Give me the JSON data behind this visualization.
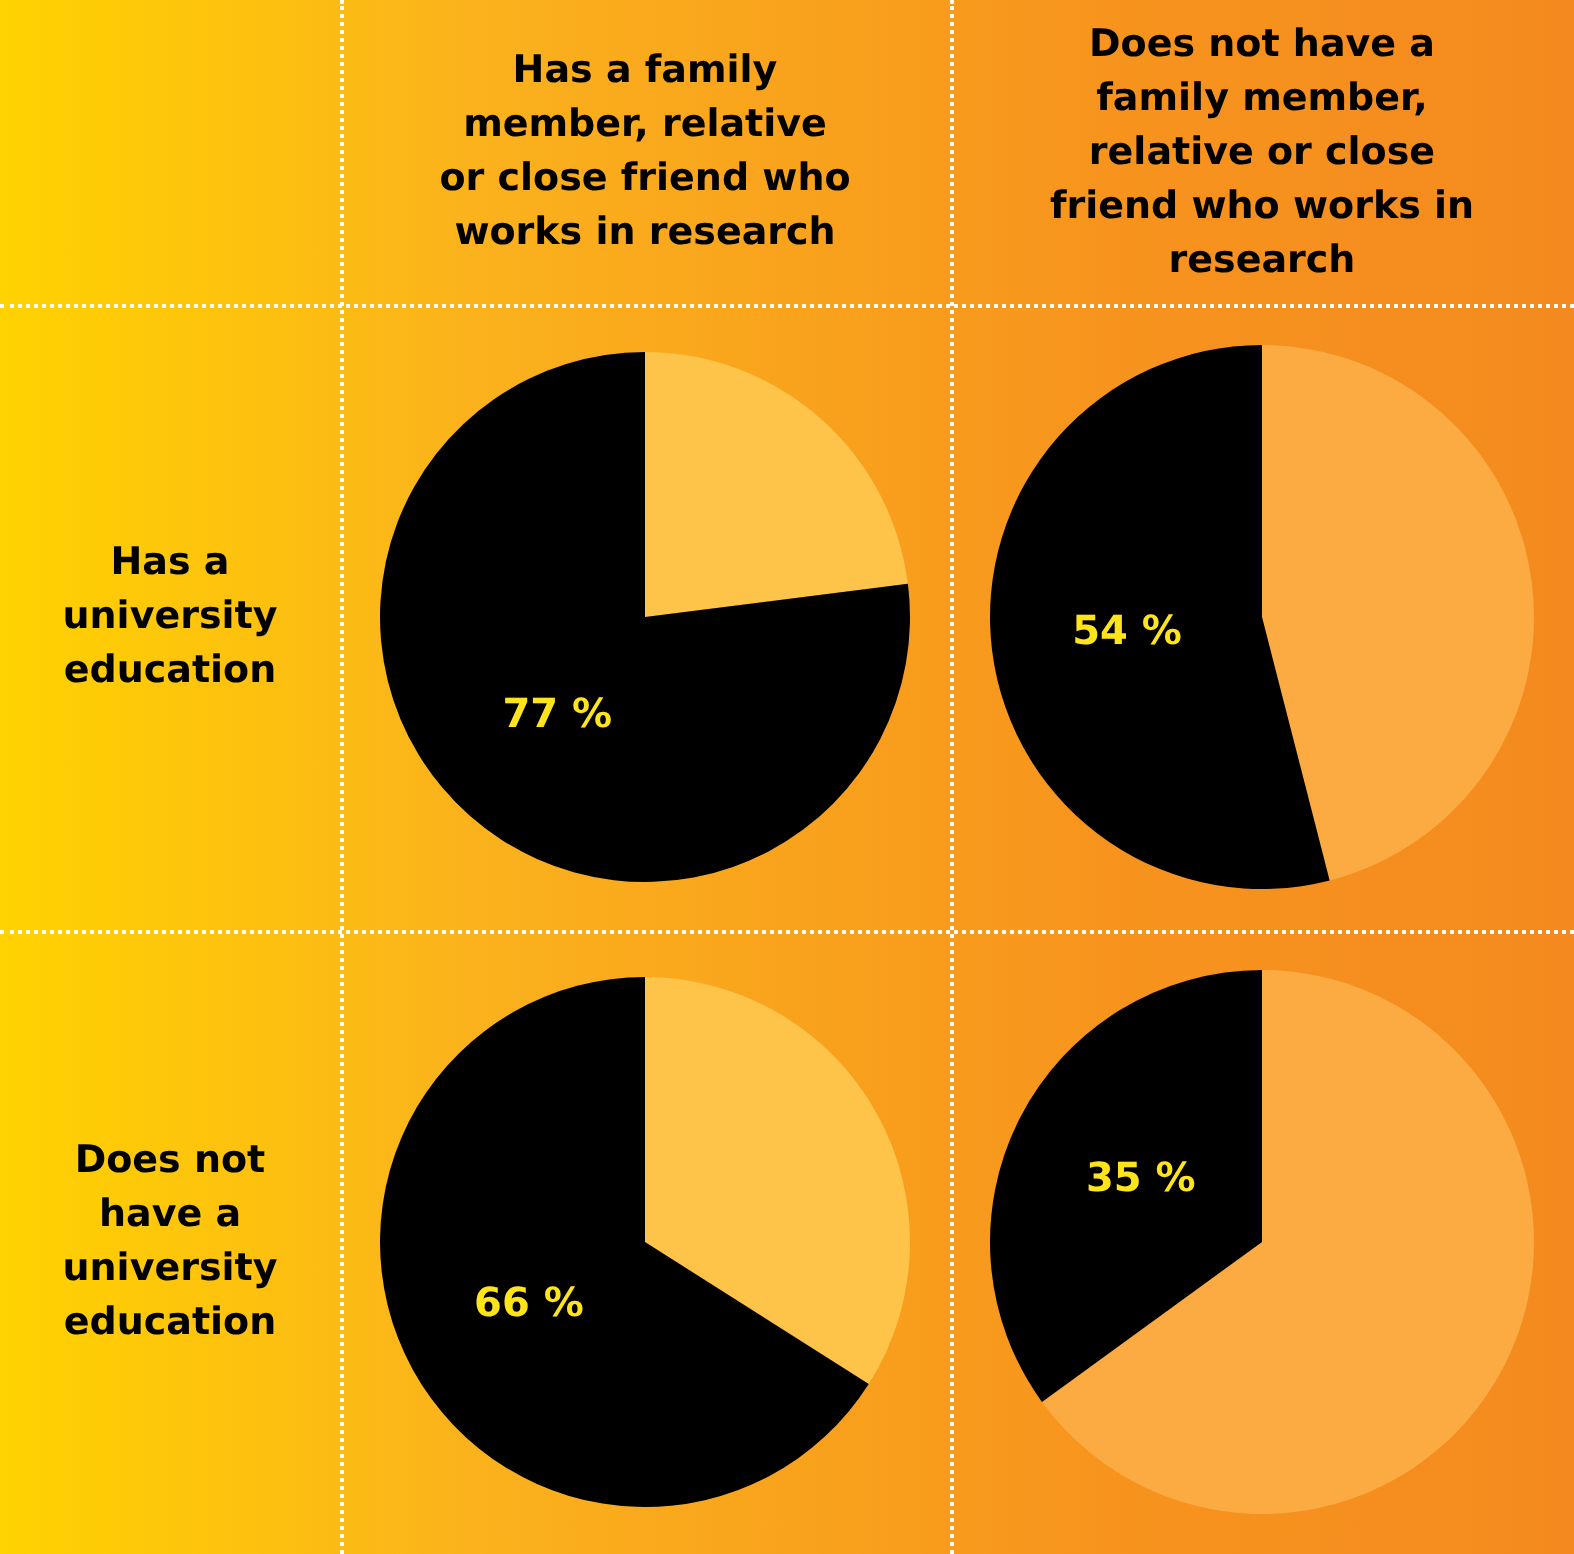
{
  "chart_data": [
    {
      "type": "other",
      "annotations": [
        "Has a family member, relative or close friend who works in research",
        "Does not have a family member, relative or close friend who works in research",
        "Has a university education",
        "Does not have a university education"
      ]
    },
    {
      "type": "pie",
      "categories": [
        null,
        null
      ],
      "values": [
        77,
        23
      ],
      "colors": [
        "#000000",
        "#fdc449"
      ],
      "value_labels": [
        "77 %",
        null
      ]
    },
    {
      "type": "pie",
      "categories": [
        null,
        null
      ],
      "values": [
        54,
        46
      ],
      "colors": [
        "#000000",
        "#fbab42"
      ],
      "value_labels": [
        "54 %",
        null
      ]
    },
    {
      "type": "pie",
      "categories": [
        null,
        null
      ],
      "values": [
        66,
        34
      ],
      "colors": [
        "#000000",
        "#fdc449"
      ],
      "value_labels": [
        "66 %",
        null
      ]
    },
    {
      "type": "pie",
      "categories": [
        null,
        null
      ],
      "values": [
        35,
        65
      ],
      "colors": [
        "#000000",
        "#fbab42"
      ],
      "value_labels": [
        "35 %",
        null
      ]
    }
  ]
}
